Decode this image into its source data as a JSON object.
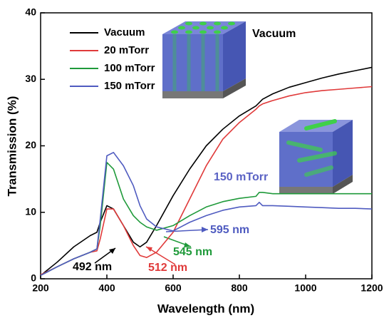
{
  "chart_data": {
    "type": "line",
    "x_label": "Wavelength (nm)",
    "y_label": "Transmission (%)",
    "x": [
      200,
      250,
      300,
      350,
      370,
      380,
      400,
      420,
      450,
      480,
      500,
      520,
      550,
      600,
      650,
      700,
      750,
      800,
      850,
      860,
      870,
      900,
      950,
      1000,
      1050,
      1100,
      1150,
      1200
    ],
    "series": [
      {
        "name": "Vacuum",
        "color": "#000000",
        "values": [
          0.5,
          2.5,
          4.8,
          6.5,
          7,
          8.5,
          11,
          10.5,
          8,
          5.5,
          4.8,
          5.5,
          8,
          12.5,
          16.5,
          20,
          22.5,
          24.5,
          26,
          26.5,
          27,
          27.8,
          28.8,
          29.5,
          30.2,
          30.8,
          31.3,
          31.8
        ]
      },
      {
        "name": "20 mTorr",
        "color": "#e03a3a",
        "values": [
          0.6,
          1.8,
          3,
          4,
          4.2,
          6,
          10.5,
          10.5,
          8,
          5,
          3.5,
          3.2,
          4,
          7,
          12,
          17,
          21,
          23.5,
          25.5,
          26,
          26.3,
          26.8,
          27.5,
          28,
          28.3,
          28.5,
          28.7,
          28.9
        ]
      },
      {
        "name": "100 mTorr",
        "color": "#1f9a3a",
        "values": [
          0.5,
          1.8,
          3,
          4,
          4.5,
          8,
          17.5,
          16.5,
          12,
          9.5,
          8.5,
          7.8,
          7.3,
          8,
          9.5,
          10.8,
          11.6,
          12.1,
          12.4,
          13,
          13,
          12.8,
          12.8,
          12.8,
          12.8,
          12.8,
          12.8,
          12.8
        ]
      },
      {
        "name": "150 mTorr",
        "color": "#4f5bc0",
        "values": [
          0.5,
          1.8,
          3,
          4,
          4.5,
          9,
          18.5,
          19,
          17,
          14,
          11,
          9,
          7.8,
          7.2,
          8.5,
          9.5,
          10.3,
          10.8,
          11,
          11.5,
          11,
          11,
          10.9,
          10.8,
          10.7,
          10.6,
          10.6,
          10.5
        ]
      }
    ],
    "xlim": [
      200,
      1200
    ],
    "xticks": [
      200,
      400,
      600,
      800,
      1000,
      1200
    ],
    "ylim": [
      0,
      40
    ],
    "yticks": [
      0,
      10,
      20,
      30,
      40
    ],
    "legend": "upper-left",
    "annotations": [
      "Vacuum",
      "150 mTorr",
      "492 nm",
      "512 nm",
      "545 nm",
      "595 nm"
    ]
  }
}
